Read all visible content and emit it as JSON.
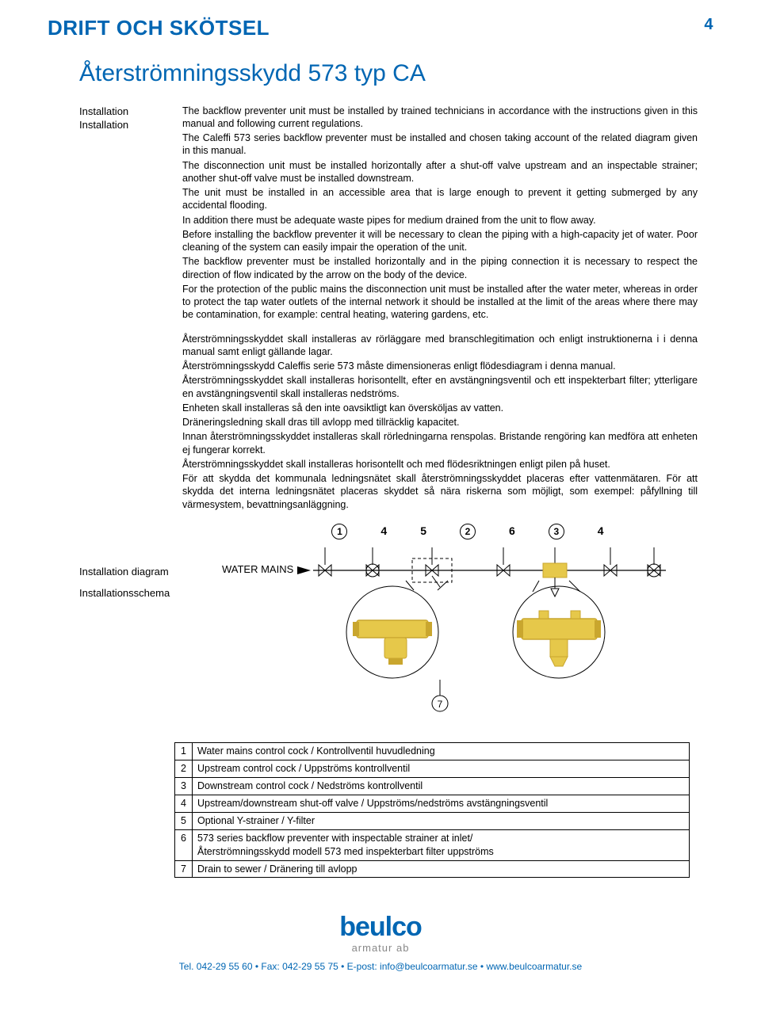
{
  "header": {
    "title": "DRIFT OCH SKÖTSEL",
    "page_number": "4"
  },
  "main_title": "Återströmningsskydd 573 typ CA",
  "section1": {
    "label_en": "Installation",
    "label_sv": "Installation",
    "en_paragraphs": [
      "The backflow preventer unit must be installed by trained technicians in accordance with the instructions given in this manual and following current regulations.",
      "The Caleffi 573 series backflow preventer must be installed and chosen taking account of the related diagram given in this manual.",
      "The disconnection unit must be installed horizontally after a shut-off valve upstream and an inspectable strainer; another shut-off valve must be installed downstream.",
      "The unit must be installed in an accessible area that is large enough to prevent it getting submerged by any accidental flooding.",
      "In addition there must be adequate waste pipes for medium drained from the unit to flow away.",
      "Before installing the backflow preventer it will be necessary to clean the piping with a high-capacity jet of water. Poor cleaning of the system can easily impair the operation of the unit.",
      "The backflow preventer must be installed horizontally and in the piping connection it is necessary to respect the direction of flow indicated by the arrow on the body of the device.",
      "For the protection of the public mains the disconnection unit must be installed after the water meter, whereas in order to protect the tap water outlets of the internal network it should be installed at the limit of the areas where there may be contamination, for example: central heating, watering gardens, etc."
    ],
    "sv_paragraphs": [
      "Återströmningsskyddet skall installeras av rörläggare med branschlegitimation och enligt instruktionerna i i denna manual samt enligt gällande lagar.",
      "Återströmningsskydd Caleffis serie 573 måste dimensioneras enligt flödesdiagram i denna manual.",
      "Återströmningsskyddet skall installeras horisontellt, efter en avstängningsventil och ett inspekterbart filter; ytterligare en avstängningsventil skall installeras nedströms.",
      "Enheten skall installeras så den inte oavsiktligt kan översköljas av vatten.",
      "Dräneringsledning skall dras till avlopp med tillräcklig kapacitet.",
      "Innan återströmningsskyddet installeras skall rörledningarna renspolas. Bristande rengöring kan medföra att enheten ej fungerar korrekt.",
      "Återströmningsskyddet skall installeras horisontellt och med flödesriktningen enligt pilen på huset.",
      "För att skydda det kommunala ledningsnätet skall återströmningsskyddet placeras efter vattenmätaren. För att skydda det interna ledningsnätet placeras skyddet så nära riskerna som möjligt, som exempel: påfyllning till värmesystem, bevattningsanläggning."
    ]
  },
  "diagram": {
    "left_label_en": "Installation diagram",
    "left_label_sv": "Installationsschema",
    "water_mains": "WATER MAINS",
    "callouts": [
      {
        "n": "1",
        "circle": true
      },
      {
        "n": "4",
        "circle": false
      },
      {
        "n": "5",
        "circle": false
      },
      {
        "n": "2",
        "circle": true
      },
      {
        "n": "6",
        "circle": false
      },
      {
        "n": "3",
        "circle": true
      },
      {
        "n": "4",
        "circle": false
      }
    ],
    "bottom_callout": "7",
    "colors": {
      "brass": "#e6c84a",
      "brass_dark": "#c9a62e",
      "line": "#000000",
      "dashed": "#000000",
      "bg": "#ffffff"
    }
  },
  "legend": {
    "rows": [
      {
        "n": "1",
        "text": "Water mains control cock / Kontrollventil huvudledning"
      },
      {
        "n": "2",
        "text": "Upstream control cock / Uppströms kontrollventil"
      },
      {
        "n": "3",
        "text": "Downstream control cock / Nedströms kontrollventil"
      },
      {
        "n": "4",
        "text": "Upstream/downstream shut-off valve / Uppströms/nedströms avstängningsventil"
      },
      {
        "n": "5",
        "text": "Optional Y-strainer / Y-filter"
      },
      {
        "n": "6",
        "text": "573 series backflow preventer with inspectable strainer at inlet/\nÅterströmningsskydd modell 573 med inspekterbart filter uppströms"
      },
      {
        "n": "7",
        "text": "Drain to sewer / Dränering till avlopp"
      }
    ]
  },
  "footer": {
    "logo_main": "beulco",
    "logo_sub": "armatur ab",
    "contact": "Tel. 042-29 55 60 • Fax: 042-29 55 75 • E-post: info@beulcoarmatur.se • www.beulcoarmatur.se"
  }
}
